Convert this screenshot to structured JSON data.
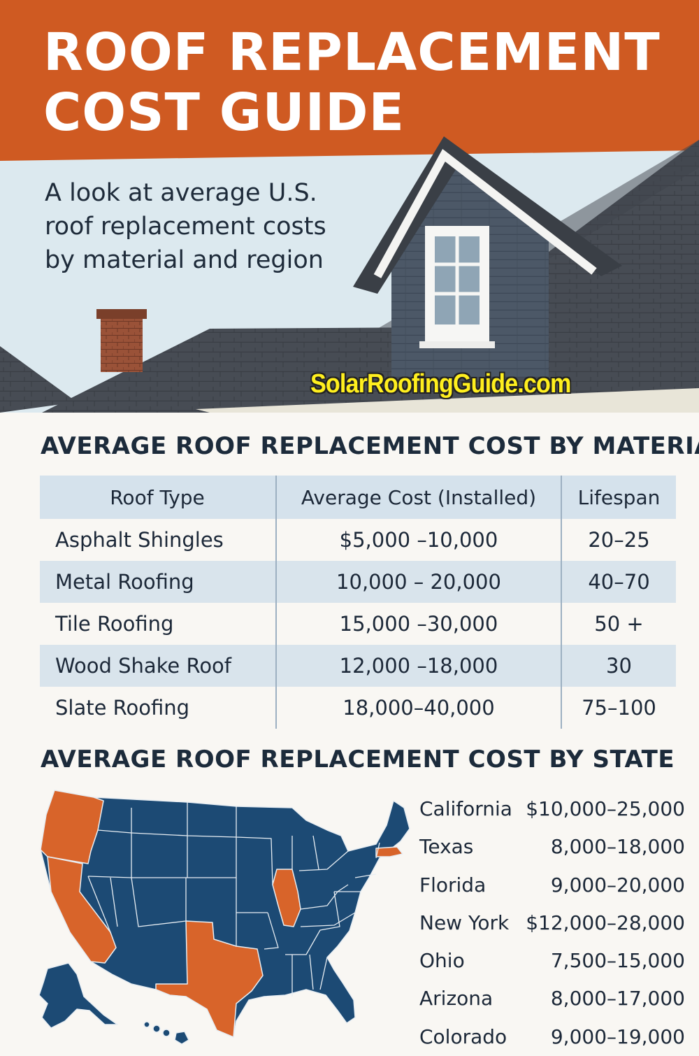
{
  "header": {
    "title_line1": "ROOF REPLACEMENT",
    "title_line2": "COST GUIDE",
    "subtitle_line1": "A look at average U.S.",
    "subtitle_line2": "roof replacement costs",
    "subtitle_line3": "by material and region",
    "watermark": "SolarRoofingGuide.com"
  },
  "colors": {
    "header_orange": "#cf5a22",
    "map_blue": "#1c4a74",
    "map_orange": "#d8642a",
    "table_stripe": "#d9e4ec"
  },
  "material_section": {
    "heading": "AVERAGE ROOF REPLACEMENT COST BY MATERIAL",
    "columns": [
      "Roof Type",
      "Average Cost (Installed)",
      "Lifespan"
    ],
    "rows": [
      {
        "type": "Asphalt Shingles",
        "cost": "$5,000 –10,000",
        "lifespan": "20–25"
      },
      {
        "type": "Metal Roofing",
        "cost": "10,000 – 20,000",
        "lifespan": "40–70"
      },
      {
        "type": "Tile Roofing",
        "cost": "15,000 –30,000",
        "lifespan": "50 +"
      },
      {
        "type": "Wood Shake Roof",
        "cost": "12,000 –18,000",
        "lifespan": "30"
      },
      {
        "type": "Slate Roofing",
        "cost": "18,000–40,000",
        "lifespan": "75–100"
      }
    ]
  },
  "state_section": {
    "heading": "AVERAGE ROOF REPLACEMENT COST BY STATE",
    "rows": [
      {
        "state": "California",
        "cost": "$10,000–25,000"
      },
      {
        "state": "Texas",
        "cost": "8,000–18,000"
      },
      {
        "state": "Florida",
        "cost": "9,000–20,000"
      },
      {
        "state": "New York",
        "cost": "$12,000–28,000"
      },
      {
        "state": "Ohio",
        "cost": "7,500–15,000"
      },
      {
        "state": "Arizona",
        "cost": "8,000–17,000"
      },
      {
        "state": "Colorado",
        "cost": "9,000–19,000"
      }
    ]
  }
}
